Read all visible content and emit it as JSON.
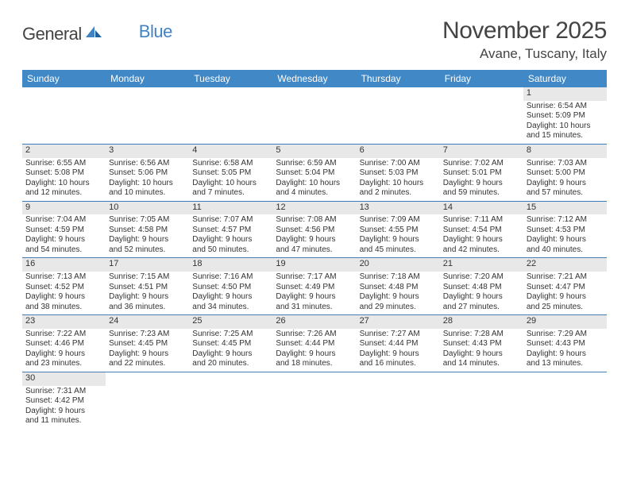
{
  "logo": {
    "part1": "General",
    "part2": "Blue"
  },
  "title": "November 2025",
  "location": "Avane, Tuscany, Italy",
  "colors": {
    "header_bg": "#4088c6",
    "header_text": "#ffffff",
    "row_divider": "#3f7fb8",
    "shaded_bg": "#e8e8e8",
    "text": "#333333",
    "logo_gray": "#444444",
    "logo_blue": "#3f83c4"
  },
  "daynames": [
    "Sunday",
    "Monday",
    "Tuesday",
    "Wednesday",
    "Thursday",
    "Friday",
    "Saturday"
  ],
  "weeks": [
    [
      {
        "blank": true
      },
      {
        "blank": true
      },
      {
        "blank": true
      },
      {
        "blank": true
      },
      {
        "blank": true
      },
      {
        "blank": true
      },
      {
        "num": "1",
        "sunrise": "Sunrise: 6:54 AM",
        "sunset": "Sunset: 5:09 PM",
        "day1": "Daylight: 10 hours",
        "day2": "and 15 minutes."
      }
    ],
    [
      {
        "num": "2",
        "sunrise": "Sunrise: 6:55 AM",
        "sunset": "Sunset: 5:08 PM",
        "day1": "Daylight: 10 hours",
        "day2": "and 12 minutes."
      },
      {
        "num": "3",
        "sunrise": "Sunrise: 6:56 AM",
        "sunset": "Sunset: 5:06 PM",
        "day1": "Daylight: 10 hours",
        "day2": "and 10 minutes."
      },
      {
        "num": "4",
        "sunrise": "Sunrise: 6:58 AM",
        "sunset": "Sunset: 5:05 PM",
        "day1": "Daylight: 10 hours",
        "day2": "and 7 minutes."
      },
      {
        "num": "5",
        "sunrise": "Sunrise: 6:59 AM",
        "sunset": "Sunset: 5:04 PM",
        "day1": "Daylight: 10 hours",
        "day2": "and 4 minutes."
      },
      {
        "num": "6",
        "sunrise": "Sunrise: 7:00 AM",
        "sunset": "Sunset: 5:03 PM",
        "day1": "Daylight: 10 hours",
        "day2": "and 2 minutes."
      },
      {
        "num": "7",
        "sunrise": "Sunrise: 7:02 AM",
        "sunset": "Sunset: 5:01 PM",
        "day1": "Daylight: 9 hours",
        "day2": "and 59 minutes."
      },
      {
        "num": "8",
        "sunrise": "Sunrise: 7:03 AM",
        "sunset": "Sunset: 5:00 PM",
        "day1": "Daylight: 9 hours",
        "day2": "and 57 minutes."
      }
    ],
    [
      {
        "num": "9",
        "sunrise": "Sunrise: 7:04 AM",
        "sunset": "Sunset: 4:59 PM",
        "day1": "Daylight: 9 hours",
        "day2": "and 54 minutes."
      },
      {
        "num": "10",
        "sunrise": "Sunrise: 7:05 AM",
        "sunset": "Sunset: 4:58 PM",
        "day1": "Daylight: 9 hours",
        "day2": "and 52 minutes."
      },
      {
        "num": "11",
        "sunrise": "Sunrise: 7:07 AM",
        "sunset": "Sunset: 4:57 PM",
        "day1": "Daylight: 9 hours",
        "day2": "and 50 minutes."
      },
      {
        "num": "12",
        "sunrise": "Sunrise: 7:08 AM",
        "sunset": "Sunset: 4:56 PM",
        "day1": "Daylight: 9 hours",
        "day2": "and 47 minutes."
      },
      {
        "num": "13",
        "sunrise": "Sunrise: 7:09 AM",
        "sunset": "Sunset: 4:55 PM",
        "day1": "Daylight: 9 hours",
        "day2": "and 45 minutes."
      },
      {
        "num": "14",
        "sunrise": "Sunrise: 7:11 AM",
        "sunset": "Sunset: 4:54 PM",
        "day1": "Daylight: 9 hours",
        "day2": "and 42 minutes."
      },
      {
        "num": "15",
        "sunrise": "Sunrise: 7:12 AM",
        "sunset": "Sunset: 4:53 PM",
        "day1": "Daylight: 9 hours",
        "day2": "and 40 minutes."
      }
    ],
    [
      {
        "num": "16",
        "sunrise": "Sunrise: 7:13 AM",
        "sunset": "Sunset: 4:52 PM",
        "day1": "Daylight: 9 hours",
        "day2": "and 38 minutes."
      },
      {
        "num": "17",
        "sunrise": "Sunrise: 7:15 AM",
        "sunset": "Sunset: 4:51 PM",
        "day1": "Daylight: 9 hours",
        "day2": "and 36 minutes."
      },
      {
        "num": "18",
        "sunrise": "Sunrise: 7:16 AM",
        "sunset": "Sunset: 4:50 PM",
        "day1": "Daylight: 9 hours",
        "day2": "and 34 minutes."
      },
      {
        "num": "19",
        "sunrise": "Sunrise: 7:17 AM",
        "sunset": "Sunset: 4:49 PM",
        "day1": "Daylight: 9 hours",
        "day2": "and 31 minutes."
      },
      {
        "num": "20",
        "sunrise": "Sunrise: 7:18 AM",
        "sunset": "Sunset: 4:48 PM",
        "day1": "Daylight: 9 hours",
        "day2": "and 29 minutes."
      },
      {
        "num": "21",
        "sunrise": "Sunrise: 7:20 AM",
        "sunset": "Sunset: 4:48 PM",
        "day1": "Daylight: 9 hours",
        "day2": "and 27 minutes."
      },
      {
        "num": "22",
        "sunrise": "Sunrise: 7:21 AM",
        "sunset": "Sunset: 4:47 PM",
        "day1": "Daylight: 9 hours",
        "day2": "and 25 minutes."
      }
    ],
    [
      {
        "num": "23",
        "sunrise": "Sunrise: 7:22 AM",
        "sunset": "Sunset: 4:46 PM",
        "day1": "Daylight: 9 hours",
        "day2": "and 23 minutes."
      },
      {
        "num": "24",
        "sunrise": "Sunrise: 7:23 AM",
        "sunset": "Sunset: 4:45 PM",
        "day1": "Daylight: 9 hours",
        "day2": "and 22 minutes."
      },
      {
        "num": "25",
        "sunrise": "Sunrise: 7:25 AM",
        "sunset": "Sunset: 4:45 PM",
        "day1": "Daylight: 9 hours",
        "day2": "and 20 minutes."
      },
      {
        "num": "26",
        "sunrise": "Sunrise: 7:26 AM",
        "sunset": "Sunset: 4:44 PM",
        "day1": "Daylight: 9 hours",
        "day2": "and 18 minutes."
      },
      {
        "num": "27",
        "sunrise": "Sunrise: 7:27 AM",
        "sunset": "Sunset: 4:44 PM",
        "day1": "Daylight: 9 hours",
        "day2": "and 16 minutes."
      },
      {
        "num": "28",
        "sunrise": "Sunrise: 7:28 AM",
        "sunset": "Sunset: 4:43 PM",
        "day1": "Daylight: 9 hours",
        "day2": "and 14 minutes."
      },
      {
        "num": "29",
        "sunrise": "Sunrise: 7:29 AM",
        "sunset": "Sunset: 4:43 PM",
        "day1": "Daylight: 9 hours",
        "day2": "and 13 minutes."
      }
    ],
    [
      {
        "num": "30",
        "sunrise": "Sunrise: 7:31 AM",
        "sunset": "Sunset: 4:42 PM",
        "day1": "Daylight: 9 hours",
        "day2": "and 11 minutes."
      },
      {
        "blank": true
      },
      {
        "blank": true
      },
      {
        "blank": true
      },
      {
        "blank": true
      },
      {
        "blank": true
      },
      {
        "blank": true
      }
    ]
  ]
}
